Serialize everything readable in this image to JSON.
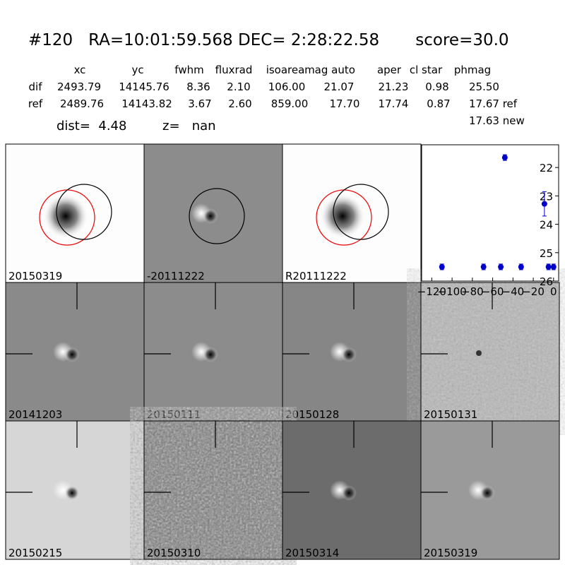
{
  "header": {
    "title": "#120   RA=10:01:59.568 DEC= 2:28:22.58       score=30.0"
  },
  "table": {
    "columns": [
      "xc",
      "yc",
      "fwhm",
      "fluxrad",
      "isoarea",
      "mag auto",
      "aper",
      "cl star",
      "phmag"
    ],
    "rows": [
      [
        "dif",
        "2493.79",
        "14145.76",
        "8.36",
        "2.10",
        "106.00",
        "21.07",
        "21.23",
        "0.98",
        "25.50"
      ],
      [
        "ref",
        "2489.76",
        "14143.82",
        "3.67",
        "2.60",
        "859.00",
        "17.70",
        "17.74",
        "0.87",
        "17.67 ref"
      ]
    ],
    "extra": "17.63 new"
  },
  "dist": "dist=  4.48",
  "z": "z=   nan",
  "panels": [
    {
      "label": "20150319"
    },
    {
      "label": "-20111222"
    },
    {
      "label": "R20111222"
    },
    {
      "label": "20141203"
    },
    {
      "label": "20150111"
    },
    {
      "label": "20150128"
    },
    {
      "label": "20150131"
    },
    {
      "label": "20150215"
    },
    {
      "label": "20150310"
    },
    {
      "label": "20150314"
    },
    {
      "label": "20150319",
      "color": "#ff0000"
    }
  ],
  "chart_data": {
    "type": "errorbar",
    "color": "#0000cc",
    "x": [
      -110,
      -69,
      -52,
      -48,
      -32,
      -9,
      -5,
      0
    ],
    "values": [
      25.5,
      25.5,
      25.5,
      21.65,
      25.5,
      23.28,
      25.5,
      25.5
    ],
    "errors": [
      0.1,
      0.1,
      0.1,
      0.1,
      0.1,
      0.43,
      0.1,
      0.1
    ],
    "xlim": [
      -130,
      5
    ],
    "ylim": [
      26,
      21.2
    ],
    "inverted_y": true,
    "xticks": [
      {
        "value": -120,
        "label": "−120"
      },
      {
        "value": -100,
        "label": "−100"
      },
      {
        "value": -80,
        "label": "−80"
      },
      {
        "value": -60,
        "label": "−60"
      },
      {
        "value": -40,
        "label": "−40"
      },
      {
        "value": -20,
        "label": "−20"
      },
      0
    ],
    "yticks": [
      22,
      23,
      24,
      25,
      26
    ]
  }
}
